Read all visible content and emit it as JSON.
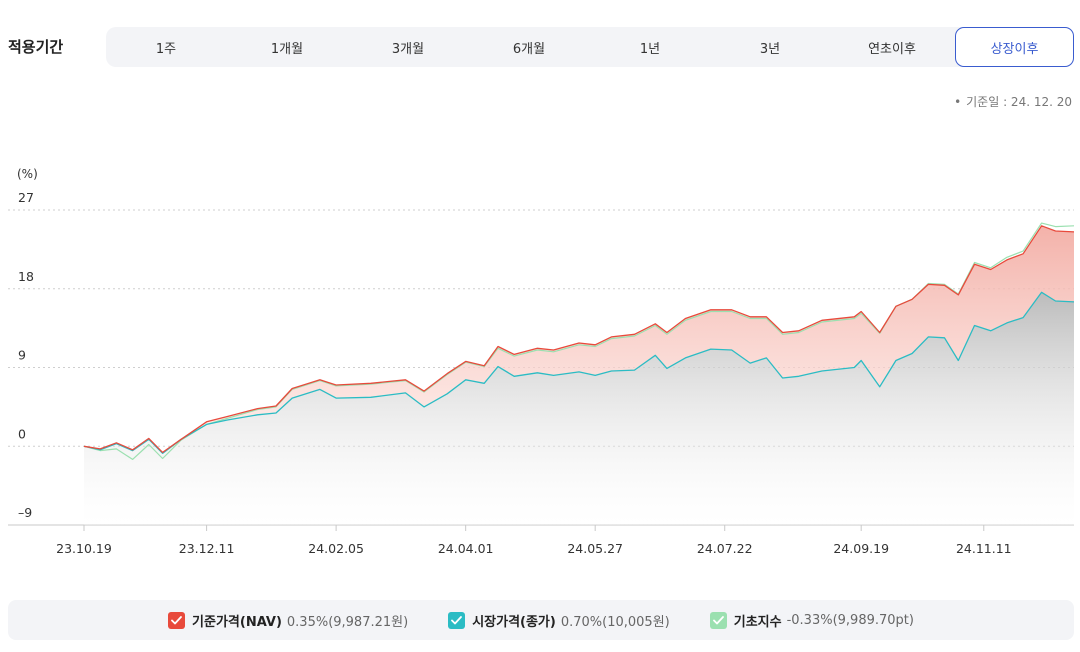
{
  "period": {
    "label": "적용기간",
    "options": [
      "1주",
      "1개월",
      "3개월",
      "6개월",
      "1년",
      "3년",
      "연초이후",
      "상장이후"
    ],
    "selected": "상장이후"
  },
  "base_date": "기준일 : 24. 12. 20",
  "colors": {
    "nav": "#e84a3c",
    "market": "#2bbcc4",
    "index": "#9be0b0",
    "accent": "#3a5ccf"
  },
  "legend": [
    {
      "name": "기준가격(NAV)",
      "value": "0.35%(9,987.21원)",
      "icon": "check-icon"
    },
    {
      "name": "시장가격(종가)",
      "value": "0.70%(10,005원)",
      "icon": "check-icon"
    },
    {
      "name": "기초지수",
      "value": "-0.33%(9,989.70pt)",
      "icon": "check-icon"
    }
  ],
  "chart_data": {
    "type": "area",
    "ylabel": "(%)",
    "ylim": [
      -9,
      27
    ],
    "yticks": [
      27,
      18,
      9,
      0,
      -9
    ],
    "xticks": [
      "23.10.19",
      "23.12.11",
      "24.02.05",
      "24.04.01",
      "24.05.27",
      "24.07.22",
      "24.09.19",
      "24.11.11"
    ],
    "x_range": [
      "2023-10-19",
      "2024-12-20"
    ],
    "grid": true,
    "legend_position": "bottom",
    "series": [
      {
        "name": "기준가격(NAV)",
        "points": [
          [
            "2023-10-19",
            0
          ],
          [
            "2023-10-26",
            -0.3
          ],
          [
            "2023-11-02",
            0.4
          ],
          [
            "2023-11-09",
            -0.4
          ],
          [
            "2023-11-16",
            0.9
          ],
          [
            "2023-11-22",
            -0.7
          ],
          [
            "2023-11-30",
            0.8
          ],
          [
            "2023-12-11",
            2.8
          ],
          [
            "2023-12-20",
            3.4
          ],
          [
            "2024-01-02",
            4.3
          ],
          [
            "2024-01-10",
            4.6
          ],
          [
            "2024-01-17",
            6.6
          ],
          [
            "2024-01-29",
            7.6
          ],
          [
            "2024-02-05",
            7.0
          ],
          [
            "2024-02-20",
            7.2
          ],
          [
            "2024-03-06",
            7.6
          ],
          [
            "2024-03-14",
            6.3
          ],
          [
            "2024-03-24",
            8.3
          ],
          [
            "2024-04-01",
            9.7
          ],
          [
            "2024-04-09",
            9.2
          ],
          [
            "2024-04-15",
            11.4
          ],
          [
            "2024-04-22",
            10.5
          ],
          [
            "2024-05-02",
            11.2
          ],
          [
            "2024-05-09",
            11.0
          ],
          [
            "2024-05-20",
            11.8
          ],
          [
            "2024-05-27",
            11.6
          ],
          [
            "2024-06-03",
            12.5
          ],
          [
            "2024-06-13",
            12.8
          ],
          [
            "2024-06-22",
            14.0
          ],
          [
            "2024-06-27",
            13.0
          ],
          [
            "2024-07-05",
            14.6
          ],
          [
            "2024-07-16",
            15.6
          ],
          [
            "2024-07-25",
            15.6
          ],
          [
            "2024-08-02",
            14.8
          ],
          [
            "2024-08-09",
            14.8
          ],
          [
            "2024-08-16",
            13.0
          ],
          [
            "2024-08-23",
            13.2
          ],
          [
            "2024-09-02",
            14.4
          ],
          [
            "2024-09-16",
            14.8
          ],
          [
            "2024-09-19",
            15.4
          ],
          [
            "2024-09-27",
            13.0
          ],
          [
            "2024-10-04",
            16.0
          ],
          [
            "2024-10-11",
            16.8
          ],
          [
            "2024-10-18",
            18.5
          ],
          [
            "2024-10-25",
            18.4
          ],
          [
            "2024-10-31",
            17.3
          ],
          [
            "2024-11-07",
            20.8
          ],
          [
            "2024-11-14",
            20.2
          ],
          [
            "2024-11-21",
            21.3
          ],
          [
            "2024-11-28",
            22.0
          ],
          [
            "2024-12-06",
            25.2
          ],
          [
            "2024-12-12",
            24.6
          ],
          [
            "2024-12-20",
            24.5
          ]
        ]
      },
      {
        "name": "시장가격(종가)",
        "points": [
          [
            "2023-10-19",
            0
          ],
          [
            "2023-10-26",
            -0.4
          ],
          [
            "2023-11-02",
            0.3
          ],
          [
            "2023-11-09",
            -0.5
          ],
          [
            "2023-11-16",
            0.8
          ],
          [
            "2023-11-22",
            -0.8
          ],
          [
            "2023-11-30",
            0.8
          ],
          [
            "2023-12-11",
            2.5
          ],
          [
            "2023-12-20",
            3.0
          ],
          [
            "2024-01-02",
            3.6
          ],
          [
            "2024-01-10",
            3.8
          ],
          [
            "2024-01-17",
            5.5
          ],
          [
            "2024-01-29",
            6.5
          ],
          [
            "2024-02-05",
            5.5
          ],
          [
            "2024-02-20",
            5.6
          ],
          [
            "2024-03-06",
            6.1
          ],
          [
            "2024-03-14",
            4.5
          ],
          [
            "2024-03-24",
            6.0
          ],
          [
            "2024-04-01",
            7.6
          ],
          [
            "2024-04-09",
            7.2
          ],
          [
            "2024-04-15",
            9.1
          ],
          [
            "2024-04-22",
            8.0
          ],
          [
            "2024-05-02",
            8.4
          ],
          [
            "2024-05-09",
            8.1
          ],
          [
            "2024-05-20",
            8.5
          ],
          [
            "2024-05-27",
            8.1
          ],
          [
            "2024-06-03",
            8.6
          ],
          [
            "2024-06-13",
            8.7
          ],
          [
            "2024-06-22",
            10.4
          ],
          [
            "2024-06-27",
            8.9
          ],
          [
            "2024-07-05",
            10.1
          ],
          [
            "2024-07-16",
            11.1
          ],
          [
            "2024-07-25",
            11.0
          ],
          [
            "2024-08-02",
            9.5
          ],
          [
            "2024-08-09",
            10.1
          ],
          [
            "2024-08-16",
            7.8
          ],
          [
            "2024-08-23",
            8.0
          ],
          [
            "2024-09-02",
            8.6
          ],
          [
            "2024-09-16",
            9.0
          ],
          [
            "2024-09-19",
            9.8
          ],
          [
            "2024-09-27",
            6.8
          ],
          [
            "2024-10-04",
            9.8
          ],
          [
            "2024-10-11",
            10.6
          ],
          [
            "2024-10-18",
            12.5
          ],
          [
            "2024-10-25",
            12.4
          ],
          [
            "2024-10-31",
            9.8
          ],
          [
            "2024-11-07",
            13.8
          ],
          [
            "2024-11-14",
            13.2
          ],
          [
            "2024-11-21",
            14.1
          ],
          [
            "2024-11-28",
            14.7
          ],
          [
            "2024-12-06",
            17.6
          ],
          [
            "2024-12-12",
            16.6
          ],
          [
            "2024-12-20",
            16.5
          ]
        ]
      },
      {
        "name": "기초지수",
        "points": [
          [
            "2023-10-19",
            0
          ],
          [
            "2023-10-26",
            -0.5
          ],
          [
            "2023-11-02",
            -0.3
          ],
          [
            "2023-11-09",
            -1.5
          ],
          [
            "2023-11-16",
            0.2
          ],
          [
            "2023-11-22",
            -1.4
          ],
          [
            "2023-11-30",
            0.7
          ],
          [
            "2023-12-11",
            2.5
          ],
          [
            "2023-12-20",
            3.2
          ],
          [
            "2024-01-02",
            4.2
          ],
          [
            "2024-01-10",
            4.5
          ],
          [
            "2024-01-17",
            6.5
          ],
          [
            "2024-01-29",
            7.5
          ],
          [
            "2024-02-05",
            6.9
          ],
          [
            "2024-02-20",
            7.1
          ],
          [
            "2024-03-06",
            7.5
          ],
          [
            "2024-03-14",
            6.2
          ],
          [
            "2024-03-24",
            8.2
          ],
          [
            "2024-04-01",
            9.6
          ],
          [
            "2024-04-09",
            9.1
          ],
          [
            "2024-04-15",
            11.2
          ],
          [
            "2024-04-22",
            10.3
          ],
          [
            "2024-05-02",
            11.0
          ],
          [
            "2024-05-09",
            10.8
          ],
          [
            "2024-05-20",
            11.6
          ],
          [
            "2024-05-27",
            11.4
          ],
          [
            "2024-06-03",
            12.3
          ],
          [
            "2024-06-13",
            12.6
          ],
          [
            "2024-06-22",
            13.8
          ],
          [
            "2024-06-27",
            12.8
          ],
          [
            "2024-07-05",
            14.4
          ],
          [
            "2024-07-16",
            15.4
          ],
          [
            "2024-07-25",
            15.4
          ],
          [
            "2024-08-02",
            14.6
          ],
          [
            "2024-08-09",
            14.6
          ],
          [
            "2024-08-16",
            12.8
          ],
          [
            "2024-08-23",
            13.0
          ],
          [
            "2024-09-02",
            14.2
          ],
          [
            "2024-09-16",
            14.6
          ],
          [
            "2024-09-19",
            15.2
          ],
          [
            "2024-09-27",
            12.9
          ],
          [
            "2024-10-04",
            16.0
          ],
          [
            "2024-10-11",
            16.8
          ],
          [
            "2024-10-18",
            18.6
          ],
          [
            "2024-10-25",
            18.5
          ],
          [
            "2024-10-31",
            17.4
          ],
          [
            "2024-11-07",
            21.0
          ],
          [
            "2024-11-14",
            20.4
          ],
          [
            "2024-11-21",
            21.6
          ],
          [
            "2024-11-28",
            22.3
          ],
          [
            "2024-12-06",
            25.5
          ],
          [
            "2024-12-12",
            25.1
          ],
          [
            "2024-12-20",
            25.2
          ]
        ]
      }
    ]
  }
}
